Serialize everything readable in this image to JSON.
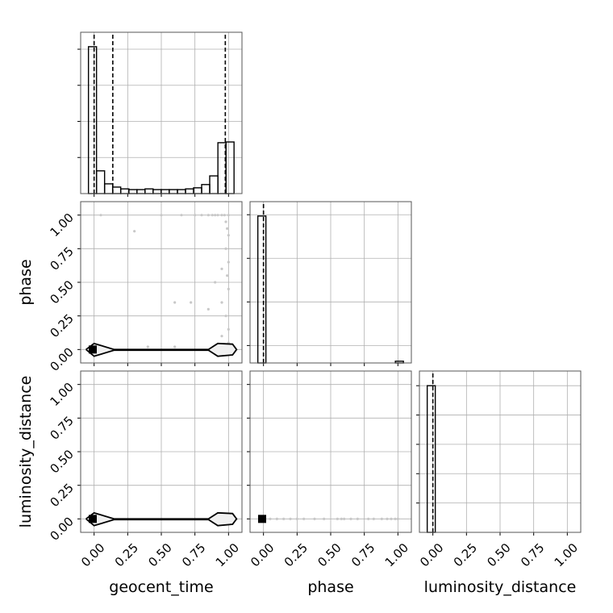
{
  "chart_data": [
    {
      "type": "histogram",
      "xlim": [
        -0.1,
        1.1
      ],
      "ylim": [
        0,
        4.47
      ],
      "xticks": [
        0,
        0.25,
        0.5,
        0.75,
        1
      ],
      "yticks": [
        1,
        2,
        3,
        4
      ],
      "grid": true,
      "color": "#000000",
      "bins": [
        -0.042,
        0.018,
        0.078,
        0.138,
        0.198,
        0.259,
        0.319,
        0.379,
        0.439,
        0.499,
        0.559,
        0.62,
        0.68,
        0.74,
        0.8,
        0.86,
        0.921,
        0.981,
        1.041
      ],
      "counts": [
        4.07,
        0.63,
        0.27,
        0.18,
        0.13,
        0.11,
        0.11,
        0.13,
        0.11,
        0.11,
        0.11,
        0.11,
        0.13,
        0.16,
        0.25,
        0.49,
        1.41,
        1.43
      ],
      "quantiles": [
        0,
        0.139,
        0.976
      ]
    },
    {
      "type": "scatter",
      "ylabel": "phase",
      "xlim": [
        -0.1,
        1.1
      ],
      "ylim": [
        -0.1,
        1.1
      ],
      "xticks": [
        0,
        0.25,
        0.5,
        0.75,
        1
      ],
      "yticks": [
        {
          "value": 0,
          "label": "0.00"
        },
        {
          "value": 0.25,
          "label": "0.25"
        },
        {
          "value": 0.5,
          "label": "0.50"
        },
        {
          "value": 0.75,
          "label": "0.75"
        },
        {
          "value": 1,
          "label": "1.00"
        }
      ],
      "grid": true,
      "points": {
        "color": "#c8c8c8",
        "x": [
          0.05,
          0.5,
          0.65,
          0.75,
          0.8,
          0.85,
          0.88,
          0.9,
          0.92,
          0.95,
          0.97,
          1,
          0.98,
          0.99,
          1,
          0.98,
          1,
          0.99,
          1,
          0.95,
          0.98,
          1,
          0.95,
          1,
          0.6,
          0.85,
          0.9,
          0.3,
          0.72,
          0.95,
          0.4,
          0.6
        ],
        "y": [
          1,
          1,
          1,
          1,
          1,
          1,
          1,
          1,
          1,
          1,
          1,
          1,
          0.95,
          0.9,
          0.85,
          0.75,
          0.65,
          0.55,
          0.45,
          0.35,
          0.25,
          0.15,
          0.1,
          0.05,
          0.35,
          0.3,
          0.5,
          0.88,
          0.35,
          0.6,
          0.02,
          0.02
        ]
      },
      "contour": {
        "x": [
          -0.06,
          0,
          0.15,
          0.85,
          0.92,
          1.03,
          1.06,
          1.03,
          0.92,
          0.85,
          0.15,
          0,
          -0.06
        ],
        "y": [
          0,
          0.045,
          0,
          0,
          0.045,
          0.04,
          0,
          -0.04,
          -0.05,
          -0.005,
          -0.005,
          -0.05,
          0
        ]
      },
      "peak": {
        "x": [
          -0.01
        ],
        "y": [
          0
        ],
        "color": "#000000"
      }
    },
    {
      "type": "histogram",
      "xlim": [
        -0.1,
        1.1
      ],
      "ylim": [
        0,
        3.7
      ],
      "xticks": [
        0,
        0.25,
        0.5,
        0.75,
        1
      ],
      "yticks": [
        0.4,
        1.4,
        2.4,
        3.4
      ],
      "grid": true,
      "color": "#000000",
      "bins": [
        -0.042,
        0.018,
        0.078,
        0.138,
        0.198,
        0.259,
        0.319,
        0.379,
        0.439,
        0.499,
        0.559,
        0.62,
        0.68,
        0.74,
        0.8,
        0.86,
        0.921,
        0.981,
        1.041
      ],
      "counts": [
        3.37,
        0,
        0,
        0,
        0,
        0,
        0,
        0,
        0,
        0,
        0,
        0,
        0,
        0,
        0,
        0,
        0,
        0.04
      ],
      "quantiles": [
        0
      ]
    },
    {
      "type": "scatter",
      "xlabel": "geocent_time",
      "ylabel": "luminosity_distance",
      "xlim": [
        -0.1,
        1.1
      ],
      "ylim": [
        -0.1,
        1.1
      ],
      "xticks": [
        {
          "value": 0,
          "label": "0.00"
        },
        {
          "value": 0.25,
          "label": "0.25"
        },
        {
          "value": 0.5,
          "label": "0.50"
        },
        {
          "value": 0.75,
          "label": "0.75"
        },
        {
          "value": 1,
          "label": "1.00"
        }
      ],
      "yticks": [
        {
          "value": 0,
          "label": "0.00"
        },
        {
          "value": 0.25,
          "label": "0.25"
        },
        {
          "value": 0.5,
          "label": "0.50"
        },
        {
          "value": 0.75,
          "label": "0.75"
        },
        {
          "value": 1,
          "label": "1.00"
        }
      ],
      "grid": true,
      "contour": {
        "x": [
          -0.06,
          0,
          0.15,
          0.85,
          0.92,
          1.03,
          1.06,
          1.03,
          0.92,
          0.85,
          0.15,
          0,
          -0.06
        ],
        "y": [
          0,
          0.045,
          0,
          0,
          0.045,
          0.04,
          0,
          -0.04,
          -0.05,
          -0.005,
          -0.005,
          -0.05,
          0
        ]
      },
      "peak": {
        "x": [
          -0.01
        ],
        "y": [
          0
        ],
        "color": "#000000"
      }
    },
    {
      "type": "scatter",
      "xlabel": "phase",
      "xlim": [
        -0.1,
        1.1
      ],
      "ylim": [
        -0.1,
        1.1
      ],
      "xticks": [
        {
          "value": 0,
          "label": "0.00"
        },
        {
          "value": 0.25,
          "label": "0.25"
        },
        {
          "value": 0.5,
          "label": "0.50"
        },
        {
          "value": 0.75,
          "label": "0.75"
        },
        {
          "value": 1,
          "label": "1.00"
        }
      ],
      "yticks": [
        0,
        0.25,
        0.5,
        0.75,
        1
      ],
      "grid": true,
      "points": {
        "color": "#c8c8c8",
        "x": [
          0.05,
          0.1,
          0.15,
          0.2,
          0.25,
          0.3,
          0.38,
          0.45,
          0.55,
          0.58,
          0.6,
          0.65,
          0.7,
          0.78,
          0.82,
          0.88,
          0.92,
          0.95,
          0.98,
          1
        ],
        "y": [
          0,
          0,
          0,
          0,
          0,
          0,
          0,
          0,
          0,
          0,
          0,
          0,
          0,
          0,
          0,
          0,
          0,
          0,
          0,
          0
        ]
      },
      "peak": {
        "x": [
          -0.01
        ],
        "y": [
          0
        ],
        "color": "#000000"
      }
    },
    {
      "type": "histogram",
      "xlabel": "luminosity_distance",
      "xlim": [
        -0.1,
        1.1
      ],
      "ylim": [
        0,
        5.5
      ],
      "xticks": [
        {
          "value": 0,
          "label": "0.00"
        },
        {
          "value": 0.25,
          "label": "0.25"
        },
        {
          "value": 0.5,
          "label": "0.50"
        },
        {
          "value": 0.75,
          "label": "0.75"
        },
        {
          "value": 1,
          "label": "1.00"
        }
      ],
      "yticks": [
        1,
        2,
        3,
        4,
        5
      ],
      "grid": true,
      "color": "#000000",
      "bins": [
        -0.042,
        0.018,
        0.078,
        0.138,
        0.198,
        0.259,
        0.319,
        0.379,
        0.439,
        0.499,
        0.559,
        0.62,
        0.68,
        0.74,
        0.8,
        0.86,
        0.921,
        0.981,
        1.041
      ],
      "counts": [
        5.0,
        0,
        0,
        0,
        0,
        0,
        0,
        0,
        0,
        0,
        0,
        0,
        0,
        0,
        0,
        0,
        0,
        0
      ],
      "quantiles": [
        0
      ]
    }
  ]
}
